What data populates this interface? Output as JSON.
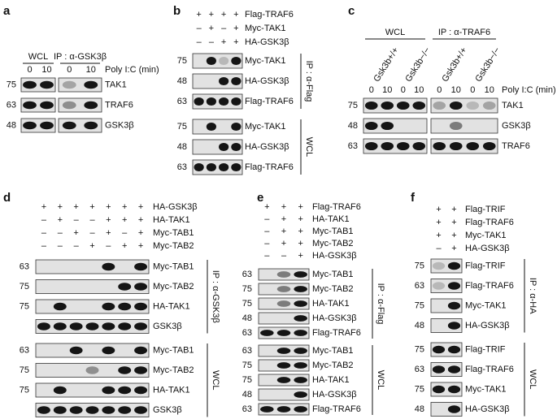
{
  "panels": [
    {
      "letter": "a",
      "headers": [
        "WCL",
        "IP : α-GSK3β"
      ],
      "lanes": [
        0,
        10,
        0,
        10
      ],
      "lane_unit": "Poly I:C (min)",
      "blots": [
        {
          "mw": 75,
          "label": "TAK1"
        },
        {
          "mw": 63,
          "label": "TRAF6"
        },
        {
          "mw": 48,
          "label": "GSK3β"
        }
      ]
    },
    {
      "letter": "b",
      "conditions": [
        {
          "signs": [
            "+",
            "+",
            "+",
            "+"
          ],
          "label": "Flag-TRAF6"
        },
        {
          "signs": [
            "–",
            "+",
            "–",
            "+"
          ],
          "label": "Myc-TAK1"
        },
        {
          "signs": [
            "–",
            "–",
            "+",
            "+"
          ],
          "label": "HA-GSK3β"
        }
      ],
      "groups": [
        {
          "label": "IP : α-Flag",
          "blots": [
            {
              "mw": 75,
              "label": "Myc-TAK1"
            },
            {
              "mw": 48,
              "label": "HA-GSK3β"
            },
            {
              "mw": 63,
              "label": "Flag-TRAF6"
            }
          ]
        },
        {
          "label": "WCL",
          "blots": [
            {
              "mw": 75,
              "label": "Myc-TAK1"
            },
            {
              "mw": 48,
              "label": "HA-GSK3β"
            },
            {
              "mw": 63,
              "label": "Flag-TRAF6"
            }
          ]
        }
      ]
    },
    {
      "letter": "c",
      "headers": [
        "WCL",
        "IP : α-TRAF6"
      ],
      "genotypes": [
        "Gsk3b+/+",
        "Gsk3b−/−",
        "Gsk3b+/+",
        "Gsk3b−/−"
      ],
      "lanes": [
        0,
        10,
        0,
        10,
        0,
        10,
        0,
        10
      ],
      "lane_unit": "Poly I:C (min)",
      "blots": [
        {
          "mw": 75,
          "label": "TAK1"
        },
        {
          "mw": 48,
          "label": "GSK3β"
        },
        {
          "mw": 63,
          "label": "TRAF6"
        }
      ]
    },
    {
      "letter": "d",
      "conditions": [
        {
          "signs": [
            "+",
            "+",
            "+",
            "+",
            "+",
            "+",
            "+"
          ],
          "label": "HA-GSK3β"
        },
        {
          "signs": [
            "–",
            "+",
            "–",
            "–",
            "+",
            "+",
            "+"
          ],
          "label": "HA-TAK1"
        },
        {
          "signs": [
            "–",
            "–",
            "+",
            "–",
            "+",
            "–",
            "+"
          ],
          "label": "Myc-TAB1"
        },
        {
          "signs": [
            "–",
            "–",
            "–",
            "+",
            "–",
            "+",
            "+"
          ],
          "label": "Myc-TAB2"
        }
      ],
      "groups": [
        {
          "label": "IP : α-GSK3β",
          "blots": [
            {
              "mw": 63,
              "label": "Myc-TAB1"
            },
            {
              "mw": 75,
              "label": "Myc-TAB2"
            },
            {
              "mw": 75,
              "label": "HA-TAK1"
            },
            {
              "label": "GSK3β"
            }
          ]
        },
        {
          "label": "WCL",
          "blots": [
            {
              "mw": 63,
              "label": "Myc-TAB1"
            },
            {
              "mw": 75,
              "label": "Myc-TAB2"
            },
            {
              "mw": 75,
              "label": "HA-TAK1"
            },
            {
              "label": "GSK3β"
            }
          ]
        }
      ]
    },
    {
      "letter": "e",
      "conditions": [
        {
          "signs": [
            "+",
            "+",
            "+"
          ],
          "label": "Flag-TRAF6"
        },
        {
          "signs": [
            "–",
            "+",
            "+"
          ],
          "label": "HA-TAK1"
        },
        {
          "signs": [
            "–",
            "+",
            "+"
          ],
          "label": "Myc-TAB1"
        },
        {
          "signs": [
            "–",
            "+",
            "+"
          ],
          "label": "Myc-TAB2"
        },
        {
          "signs": [
            "–",
            "–",
            "+"
          ],
          "label": "HA-GSK3β"
        }
      ],
      "groups": [
        {
          "label": "IP : α-Flag",
          "blots": [
            {
              "mw": 63,
              "label": "Myc-TAB1"
            },
            {
              "mw": 75,
              "label": "Myc-TAB2"
            },
            {
              "mw": 75,
              "label": "HA-TAK1"
            },
            {
              "mw": 48,
              "label": "HA-GSK3β"
            },
            {
              "mw": 63,
              "label": "Flag-TRAF6"
            }
          ]
        },
        {
          "label": "WCL",
          "blots": [
            {
              "mw": 63,
              "label": "Myc-TAB1"
            },
            {
              "mw": 75,
              "label": "Myc-TAB2"
            },
            {
              "mw": 75,
              "label": "HA-TAK1"
            },
            {
              "mw": 48,
              "label": "HA-GSK3β"
            },
            {
              "mw": 63,
              "label": "Flag-TRAF6"
            }
          ]
        }
      ]
    },
    {
      "letter": "f",
      "conditions": [
        {
          "signs": [
            "+",
            "+"
          ],
          "label": "Flag-TRIF"
        },
        {
          "signs": [
            "+",
            "+"
          ],
          "label": "Flag-TRAF6"
        },
        {
          "signs": [
            "+",
            "+"
          ],
          "label": "Myc-TAK1"
        },
        {
          "signs": [
            "–",
            "+"
          ],
          "label": "HA-GSK3β"
        }
      ],
      "groups": [
        {
          "label": "IP : α-HA",
          "blots": [
            {
              "mw": 75,
              "label": "Flag-TRIF"
            },
            {
              "mw": 63,
              "label": "Flag-TRAF6"
            },
            {
              "mw": 75,
              "label": "Myc-TAK1"
            },
            {
              "mw": 48,
              "label": "HA-GSK3β"
            }
          ]
        },
        {
          "label": "WCL",
          "blots": [
            {
              "mw": 75,
              "label": "Flag-TRIF"
            },
            {
              "mw": 63,
              "label": "Flag-TRAF6"
            },
            {
              "mw": 75,
              "label": "Myc-TAK1"
            },
            {
              "mw": 48,
              "label": "HA-GSK3β"
            }
          ]
        }
      ]
    }
  ]
}
